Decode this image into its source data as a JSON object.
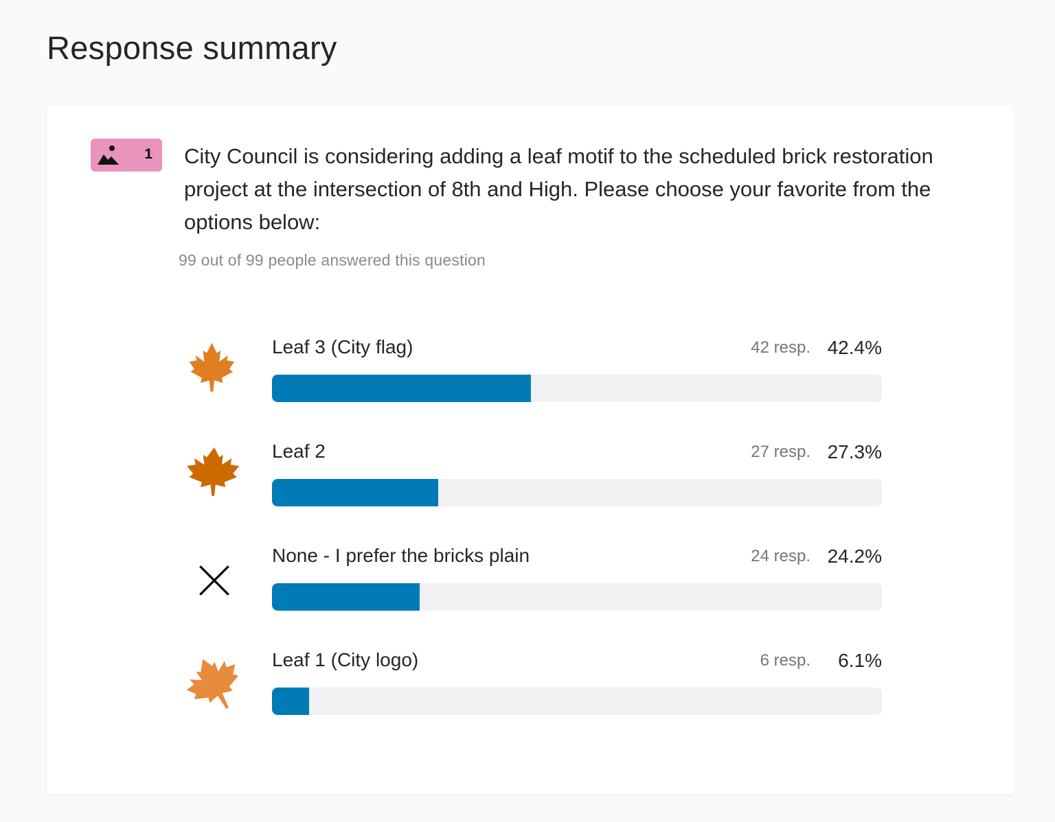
{
  "page": {
    "title": "Response summary"
  },
  "question": {
    "number": "1",
    "type_icon": "picture-choice-icon",
    "badge_color": "#e993bd",
    "text": "City Council is considering adding a leaf motif to the scheduled brick restoration project at the intersection of 8th and High. Please choose your favorite from the options below:",
    "answered": "99 out of 99 people answered this question"
  },
  "colors": {
    "bar_fill": "#007bb6",
    "bar_track": "#f1f0f3"
  },
  "options": [
    {
      "label": "Leaf 3 (City flag)",
      "responses": "42 resp.",
      "percent": "42.4%",
      "value": 42.4,
      "icon": "maple-leaf-icon",
      "icon_color": "#e07e22"
    },
    {
      "label": "Leaf 2",
      "responses": "27 resp.",
      "percent": "27.3%",
      "value": 27.3,
      "icon": "maple-leaf-icon",
      "icon_color": "#cc6a00"
    },
    {
      "label": "None - I prefer the bricks plain",
      "responses": "24 resp.",
      "percent": "24.2%",
      "value": 24.2,
      "icon": "close-x-icon",
      "icon_color": "#000000"
    },
    {
      "label": "Leaf 1 (City logo)",
      "responses": "6 resp.",
      "percent": "6.1%",
      "value": 6.1,
      "icon": "maple-leaf-icon",
      "icon_color": "#e68a3c"
    }
  ]
}
